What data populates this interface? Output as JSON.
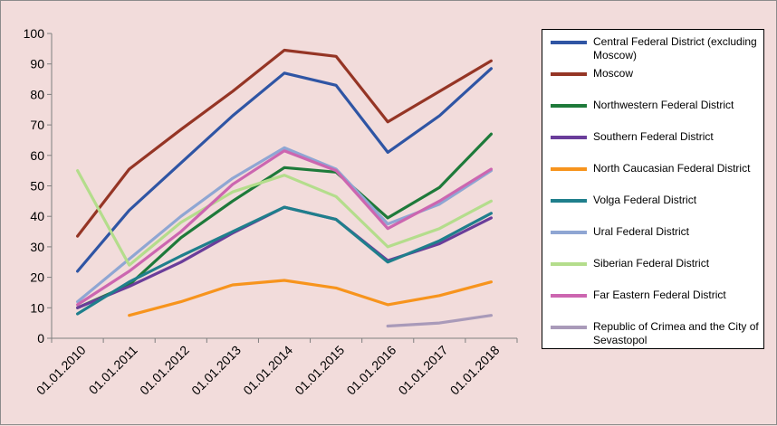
{
  "chart_data": {
    "type": "line",
    "title": "",
    "xlabel": "",
    "ylabel": "",
    "ylim": [
      0,
      100
    ],
    "yticks": [
      0,
      10,
      20,
      30,
      40,
      50,
      60,
      70,
      80,
      90,
      100
    ],
    "categories": [
      "01.01.2010",
      "01.01.2011",
      "01.01.2012",
      "01.01.2013",
      "01.01.2014",
      "01.01.2015",
      "01.01.2016",
      "01.01.2017",
      "01.01.2018"
    ],
    "grid": false,
    "legend_position": "right",
    "series": [
      {
        "name": "Central Federal District (excluding Moscow)",
        "color": "#2f55a4",
        "values": [
          22,
          42,
          57.5,
          73,
          87,
          83,
          61,
          73,
          88.5
        ]
      },
      {
        "name": "Moscow",
        "color": "#953525",
        "values": [
          33.5,
          55.5,
          68.5,
          81,
          94.5,
          92.5,
          71,
          81,
          91
        ]
      },
      {
        "name": "Northwestern Federal District",
        "color": "#1e7a3a",
        "values": [
          10,
          17.5,
          33,
          45,
          56,
          54.5,
          39.5,
          49.5,
          67
        ]
      },
      {
        "name": "Southern Federal District",
        "color": "#6a3d9a",
        "values": [
          10,
          17,
          25,
          34.5,
          43,
          39,
          25.5,
          31,
          39.5
        ]
      },
      {
        "name": "North Caucasian Federal District",
        "color": "#f7941d",
        "values": [
          null,
          7.5,
          12,
          17.5,
          19,
          16.5,
          11,
          14,
          18.5
        ]
      },
      {
        "name": "Volga Federal District",
        "color": "#1f7f8c",
        "values": [
          8,
          18.5,
          27,
          35,
          43,
          39,
          25,
          32,
          41
        ]
      },
      {
        "name": "Ural Federal District",
        "color": "#8fa6d3",
        "values": [
          12,
          26,
          40,
          52.5,
          62.5,
          55.5,
          37.5,
          44,
          55
        ]
      },
      {
        "name": "Siberian Federal District",
        "color": "#b4dd8c",
        "values": [
          55,
          24,
          38,
          48,
          53.5,
          46.5,
          30,
          36,
          45
        ]
      },
      {
        "name": "Far Eastern Federal District",
        "color": "#cc66b0",
        "values": [
          11,
          22,
          35,
          50.5,
          61.5,
          55,
          36,
          45,
          55.5
        ]
      },
      {
        "name": "Republic of Crimea and the City of Sevastopol",
        "color": "#a99ab9",
        "values": [
          null,
          null,
          null,
          null,
          null,
          null,
          4,
          5,
          7.5
        ]
      }
    ]
  }
}
